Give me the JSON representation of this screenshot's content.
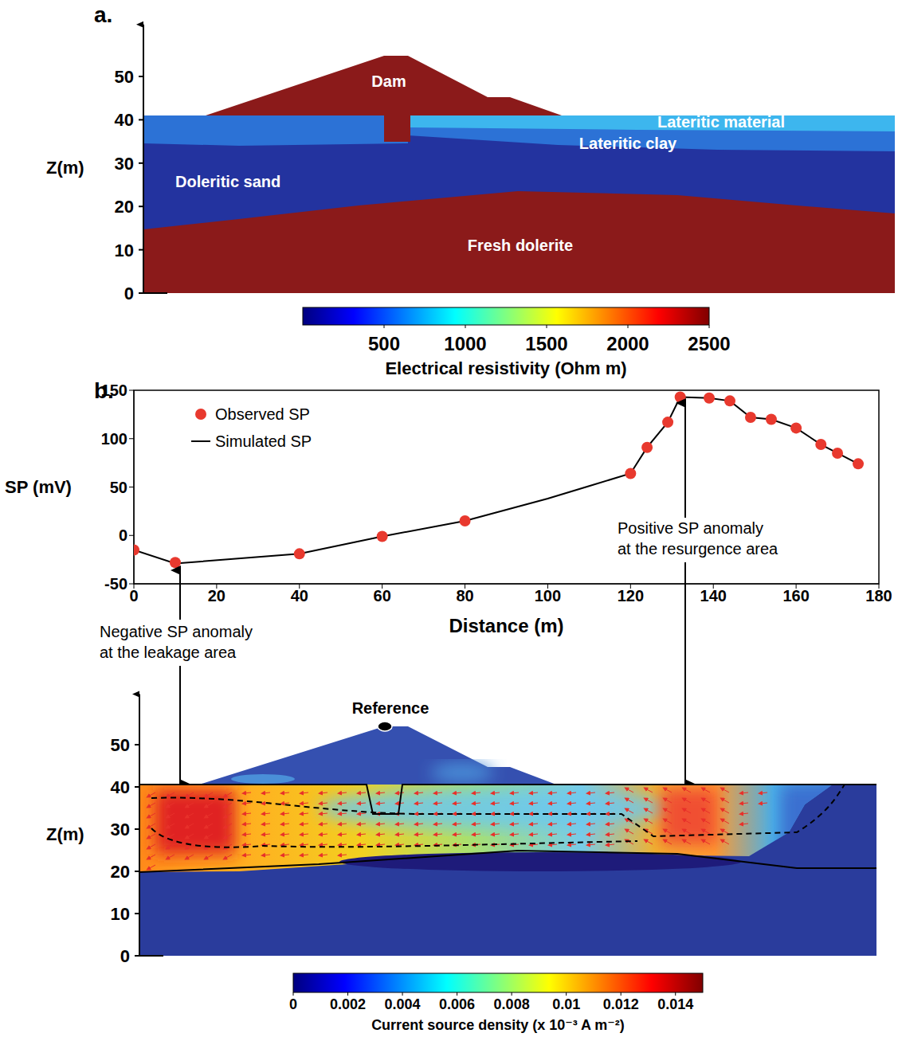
{
  "chart_data": {
    "type": "line",
    "x_label": "Distance (m)",
    "y_label": "SP (mV)",
    "xlim": [
      0,
      180
    ],
    "xticks": [
      0,
      20,
      40,
      60,
      80,
      100,
      120,
      140,
      160,
      180
    ],
    "ylim": [
      -50,
      150
    ],
    "yticks": [
      -50,
      0,
      50,
      100,
      150
    ],
    "legend": "upper left",
    "series": [
      {
        "name": "Observed SP",
        "type": "scatter",
        "marker": "circle",
        "color": "#e8392e",
        "x": [
          0,
          10,
          40,
          60,
          80,
          120,
          124,
          129,
          132,
          139,
          144,
          149,
          154,
          160,
          166,
          170,
          175
        ],
        "values": [
          -15,
          -28,
          -19,
          -1,
          15,
          64,
          91,
          117,
          143,
          142,
          139,
          122,
          120,
          111,
          94,
          85,
          74
        ]
      },
      {
        "name": "Simulated SP",
        "type": "line",
        "color": "#000000",
        "x": [
          0,
          10,
          40,
          60,
          80,
          100,
          110,
          120,
          124,
          129,
          132,
          139,
          144,
          149,
          154,
          160,
          166,
          170,
          175
        ],
        "values": [
          -15,
          -29,
          -19,
          -1,
          15,
          38,
          51,
          64,
          91,
          117,
          143,
          142,
          139,
          122,
          120,
          111,
          94,
          85,
          74
        ]
      }
    ],
    "annotations": [
      [
        "Negative SP anomaly",
        "at the leakage area"
      ],
      [
        "Positive SP anomaly",
        "at the resurgence area"
      ]
    ]
  },
  "panel_a": {
    "letter": "a.",
    "y_label": "Z(m)",
    "ylim": [
      0,
      62
    ],
    "yticks": [
      0,
      10,
      20,
      30,
      40,
      50
    ],
    "layers": [
      {
        "label": "Dam",
        "color": "#8b1a1a"
      },
      {
        "label": "Lateritic material",
        "color": "#3db6ee"
      },
      {
        "label": "Lateritic clay",
        "color": "#2c72d6"
      },
      {
        "label": "Doleritic sand",
        "color": "#23339f"
      },
      {
        "label": "Fresh dolerite",
        "color": "#8b1a1a"
      }
    ],
    "colorbar": {
      "label": "Electrical resistivity (Ohm m)",
      "lim": [
        0,
        2500
      ],
      "ticks": [
        500,
        1000,
        1500,
        2000,
        2500
      ],
      "colors": [
        "#00007f",
        "#0000ff",
        "#0080ff",
        "#00ffff",
        "#80ff80",
        "#ffff00",
        "#ff8000",
        "#ff0000",
        "#800000"
      ]
    }
  },
  "panel_b": {
    "letter": "b.",
    "y_label": "Z(m)",
    "ylim": [
      0,
      62
    ],
    "yticks": [
      0,
      10,
      20,
      30,
      40,
      50
    ],
    "reference": "Reference",
    "colorbar": {
      "label": "Current source density (x 10⁻³ A m⁻²)",
      "lim": [
        0,
        0.015
      ],
      "ticks": [
        0,
        0.002,
        0.004,
        0.006,
        0.008,
        0.01,
        0.012,
        0.014
      ],
      "colors": [
        "#00007f",
        "#0000ff",
        "#0080ff",
        "#00ffff",
        "#80ff80",
        "#ffff00",
        "#ff8000",
        "#ff0000",
        "#800000"
      ]
    }
  }
}
